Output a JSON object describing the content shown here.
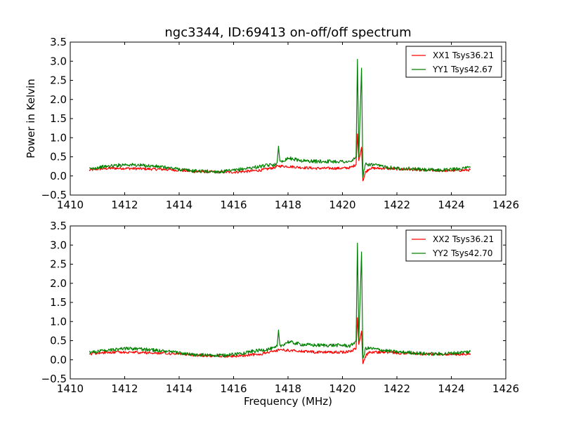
{
  "title": "ngc3344, ID:69413 on-off/off spectrum",
  "chart_data": [
    {
      "type": "line",
      "title": "ngc3344, ID:69413 on-off/off spectrum",
      "xlabel": "",
      "ylabel": "Power in Kelvin",
      "xlim": [
        1410,
        1426
      ],
      "ylim": [
        -0.5,
        3.5
      ],
      "xticks": [
        "1410",
        "1412",
        "1414",
        "1416",
        "1418",
        "1420",
        "1422",
        "1424",
        "1426"
      ],
      "yticks": [
        "−0.5",
        "0.0",
        "0.5",
        "1.0",
        "1.5",
        "2.0",
        "2.5",
        "3.0",
        "3.5"
      ],
      "grid": false,
      "legend_position": "top-right",
      "series": [
        {
          "name": "XX1 Tsys36.21",
          "color": "#ff0000",
          "points": [
            [
              1410.7,
              0.15
            ],
            [
              1411.0,
              0.18
            ],
            [
              1411.5,
              0.2
            ],
            [
              1412.0,
              0.2
            ],
            [
              1412.5,
              0.19
            ],
            [
              1413.0,
              0.18
            ],
            [
              1413.5,
              0.17
            ],
            [
              1414.0,
              0.15
            ],
            [
              1414.5,
              0.12
            ],
            [
              1415.0,
              0.11
            ],
            [
              1415.5,
              0.1
            ],
            [
              1416.0,
              0.1
            ],
            [
              1416.5,
              0.12
            ],
            [
              1417.0,
              0.15
            ],
            [
              1417.5,
              0.22
            ],
            [
              1417.65,
              0.26
            ],
            [
              1418.0,
              0.25
            ],
            [
              1418.5,
              0.22
            ],
            [
              1419.0,
              0.2
            ],
            [
              1419.5,
              0.2
            ],
            [
              1420.0,
              0.2
            ],
            [
              1420.3,
              0.22
            ],
            [
              1420.5,
              0.3
            ],
            [
              1420.55,
              1.1
            ],
            [
              1420.6,
              0.4
            ],
            [
              1420.7,
              0.75
            ],
            [
              1420.75,
              -0.12
            ],
            [
              1420.85,
              0.1
            ],
            [
              1421.0,
              0.2
            ],
            [
              1421.5,
              0.2
            ],
            [
              1422.0,
              0.18
            ],
            [
              1422.5,
              0.17
            ],
            [
              1423.0,
              0.15
            ],
            [
              1423.5,
              0.14
            ],
            [
              1424.0,
              0.14
            ],
            [
              1424.5,
              0.15
            ],
            [
              1424.7,
              0.16
            ]
          ]
        },
        {
          "name": "YY1 Tsys42.67",
          "color": "#008000",
          "points": [
            [
              1410.7,
              0.18
            ],
            [
              1411.0,
              0.22
            ],
            [
              1411.5,
              0.26
            ],
            [
              1412.0,
              0.3
            ],
            [
              1412.5,
              0.28
            ],
            [
              1413.0,
              0.26
            ],
            [
              1413.5,
              0.22
            ],
            [
              1414.0,
              0.18
            ],
            [
              1414.5,
              0.13
            ],
            [
              1415.0,
              0.12
            ],
            [
              1415.5,
              0.11
            ],
            [
              1416.0,
              0.14
            ],
            [
              1416.5,
              0.2
            ],
            [
              1417.0,
              0.25
            ],
            [
              1417.5,
              0.3
            ],
            [
              1417.6,
              0.35
            ],
            [
              1417.65,
              0.78
            ],
            [
              1417.7,
              0.35
            ],
            [
              1418.0,
              0.47
            ],
            [
              1418.5,
              0.4
            ],
            [
              1419.0,
              0.38
            ],
            [
              1419.5,
              0.38
            ],
            [
              1420.0,
              0.38
            ],
            [
              1420.3,
              0.36
            ],
            [
              1420.5,
              0.5
            ],
            [
              1420.55,
              3.05
            ],
            [
              1420.6,
              0.5
            ],
            [
              1420.7,
              2.82
            ],
            [
              1420.75,
              0.0
            ],
            [
              1420.85,
              0.3
            ],
            [
              1421.0,
              0.3
            ],
            [
              1421.5,
              0.25
            ],
            [
              1422.0,
              0.2
            ],
            [
              1422.5,
              0.19
            ],
            [
              1423.0,
              0.16
            ],
            [
              1423.5,
              0.15
            ],
            [
              1424.0,
              0.17
            ],
            [
              1424.5,
              0.2
            ],
            [
              1424.7,
              0.22
            ]
          ]
        }
      ]
    },
    {
      "type": "line",
      "title": "",
      "xlabel": "Frequency (MHz)",
      "ylabel": "",
      "xlim": [
        1410,
        1426
      ],
      "ylim": [
        -0.5,
        3.5
      ],
      "xticks": [
        "1410",
        "1412",
        "1414",
        "1416",
        "1418",
        "1420",
        "1422",
        "1424",
        "1426"
      ],
      "yticks": [
        "−0.5",
        "0.0",
        "0.5",
        "1.0",
        "1.5",
        "2.0",
        "2.5",
        "3.0",
        "3.5"
      ],
      "grid": false,
      "legend_position": "top-right",
      "series": [
        {
          "name": "XX2 Tsys36.21",
          "color": "#ff0000",
          "points": [
            [
              1410.7,
              0.15
            ],
            [
              1411.0,
              0.18
            ],
            [
              1411.5,
              0.2
            ],
            [
              1412.0,
              0.2
            ],
            [
              1412.5,
              0.19
            ],
            [
              1413.0,
              0.18
            ],
            [
              1413.5,
              0.17
            ],
            [
              1414.0,
              0.15
            ],
            [
              1414.5,
              0.12
            ],
            [
              1415.0,
              0.11
            ],
            [
              1415.5,
              0.1
            ],
            [
              1416.0,
              0.1
            ],
            [
              1416.5,
              0.12
            ],
            [
              1417.0,
              0.15
            ],
            [
              1417.5,
              0.22
            ],
            [
              1417.65,
              0.26
            ],
            [
              1418.0,
              0.25
            ],
            [
              1418.5,
              0.22
            ],
            [
              1419.0,
              0.2
            ],
            [
              1419.5,
              0.2
            ],
            [
              1420.0,
              0.2
            ],
            [
              1420.3,
              0.22
            ],
            [
              1420.5,
              0.3
            ],
            [
              1420.55,
              1.1
            ],
            [
              1420.6,
              0.4
            ],
            [
              1420.7,
              0.75
            ],
            [
              1420.75,
              -0.12
            ],
            [
              1420.85,
              0.1
            ],
            [
              1421.0,
              0.2
            ],
            [
              1421.5,
              0.2
            ],
            [
              1422.0,
              0.18
            ],
            [
              1422.5,
              0.17
            ],
            [
              1423.0,
              0.15
            ],
            [
              1423.5,
              0.14
            ],
            [
              1424.0,
              0.14
            ],
            [
              1424.5,
              0.15
            ],
            [
              1424.7,
              0.16
            ]
          ]
        },
        {
          "name": "YY2 Tsys42.70",
          "color": "#008000",
          "points": [
            [
              1410.7,
              0.18
            ],
            [
              1411.0,
              0.22
            ],
            [
              1411.5,
              0.26
            ],
            [
              1412.0,
              0.3
            ],
            [
              1412.5,
              0.28
            ],
            [
              1413.0,
              0.26
            ],
            [
              1413.5,
              0.22
            ],
            [
              1414.0,
              0.18
            ],
            [
              1414.5,
              0.13
            ],
            [
              1415.0,
              0.12
            ],
            [
              1415.5,
              0.11
            ],
            [
              1416.0,
              0.14
            ],
            [
              1416.5,
              0.2
            ],
            [
              1417.0,
              0.25
            ],
            [
              1417.5,
              0.3
            ],
            [
              1417.6,
              0.35
            ],
            [
              1417.65,
              0.78
            ],
            [
              1417.7,
              0.35
            ],
            [
              1418.0,
              0.47
            ],
            [
              1418.5,
              0.4
            ],
            [
              1419.0,
              0.38
            ],
            [
              1419.5,
              0.38
            ],
            [
              1420.0,
              0.38
            ],
            [
              1420.3,
              0.36
            ],
            [
              1420.5,
              0.5
            ],
            [
              1420.55,
              3.05
            ],
            [
              1420.6,
              0.5
            ],
            [
              1420.7,
              2.82
            ],
            [
              1420.75,
              0.0
            ],
            [
              1420.85,
              0.3
            ],
            [
              1421.0,
              0.3
            ],
            [
              1421.5,
              0.25
            ],
            [
              1422.0,
              0.2
            ],
            [
              1422.5,
              0.19
            ],
            [
              1423.0,
              0.16
            ],
            [
              1423.5,
              0.15
            ],
            [
              1424.0,
              0.17
            ],
            [
              1424.5,
              0.2
            ],
            [
              1424.7,
              0.22
            ]
          ]
        }
      ]
    }
  ]
}
